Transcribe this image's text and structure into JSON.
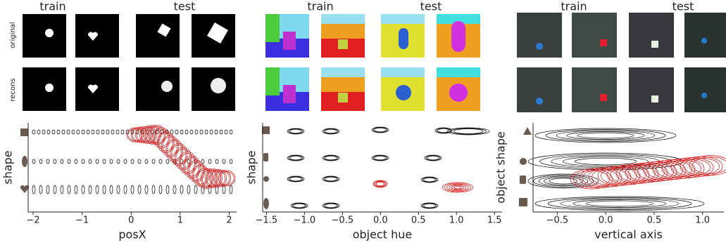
{
  "image_grids": [
    {
      "train": "train",
      "test": "test",
      "row_labels": [
        "original",
        "recons"
      ]
    },
    {
      "train": "train",
      "test": "test"
    },
    {
      "train": "train",
      "test": "test"
    }
  ],
  "chart_data": [
    {
      "type": "contour",
      "xlabel": "posX",
      "ylabel": "shape",
      "xlim": [
        -2.1,
        2.15
      ],
      "xticks": [
        {
          "value": -2,
          "label": "−2"
        },
        {
          "value": -1,
          "label": "−1"
        },
        0,
        1,
        2
      ]
    },
    {
      "type": "contour",
      "xlabel": "object hue",
      "ylabel": "shape",
      "xlim": [
        -1.55,
        1.6
      ],
      "xticks": [
        {
          "value": -1.5,
          "label": "−1.5"
        },
        {
          "value": -1.0,
          "label": "−1.0"
        },
        {
          "value": -0.5,
          "label": "−0.5"
        },
        {
          "value": 0,
          "label": "0.0"
        },
        0.5,
        {
          "value": 1.0,
          "label": "1.0"
        },
        1.5
      ]
    },
    {
      "type": "contour",
      "xlabel": "vertical axis",
      "ylabel": "object shape",
      "xlim": [
        -0.75,
        1.22
      ],
      "xticks": [
        {
          "value": -0.5,
          "label": "−0.5"
        },
        {
          "value": 0,
          "label": "0.0"
        },
        0.5,
        {
          "value": 1.0,
          "label": "1.0"
        }
      ]
    }
  ]
}
